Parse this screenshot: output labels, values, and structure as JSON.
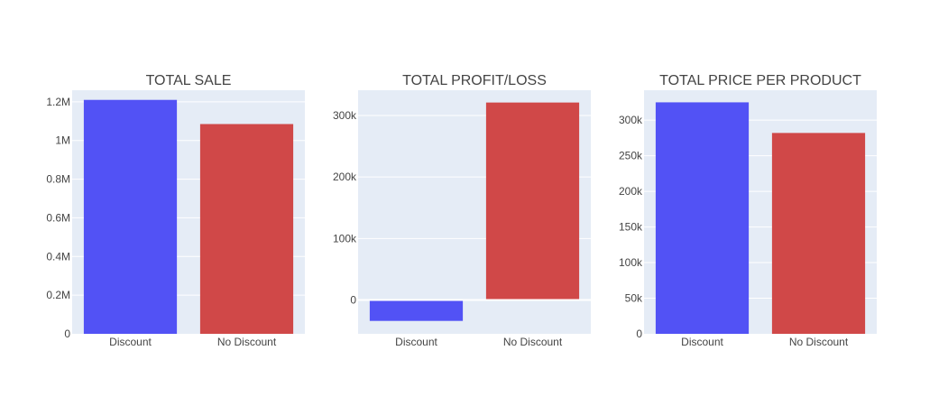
{
  "chart_data": [
    {
      "type": "bar",
      "title": "TOTAL SALE",
      "categories": [
        "Discount",
        "No Discount"
      ],
      "values": [
        1210000,
        1085000
      ],
      "colors": [
        "#5252f5",
        "#d04848"
      ],
      "ylim": [
        0,
        1260000
      ],
      "yticks": [
        0,
        200000,
        400000,
        600000,
        800000,
        1000000,
        1200000
      ],
      "yticklabels": [
        "0",
        "0.2M",
        "0.4M",
        "0.6M",
        "0.8M",
        "1M",
        "1.2M"
      ],
      "xlabel": "",
      "ylabel": "",
      "grid": true
    },
    {
      "type": "bar",
      "title": "TOTAL PROFIT/LOSS",
      "categories": [
        "Discount",
        "No Discount"
      ],
      "values": [
        -34000,
        321000
      ],
      "colors": [
        "#5252f5",
        "#d04848"
      ],
      "ylim": [
        -55000,
        341000
      ],
      "yticks": [
        0,
        100000,
        200000,
        300000
      ],
      "yticklabels": [
        "0",
        "100k",
        "200k",
        "300k"
      ],
      "xlabel": "",
      "ylabel": "",
      "grid": true
    },
    {
      "type": "bar",
      "title": "TOTAL PRICE PER PRODUCT",
      "categories": [
        "Discount",
        "No Discount"
      ],
      "values": [
        325000,
        282000
      ],
      "colors": [
        "#5252f5",
        "#d04848"
      ],
      "ylim": [
        0,
        342000
      ],
      "yticks": [
        0,
        50000,
        100000,
        150000,
        200000,
        250000,
        300000
      ],
      "yticklabels": [
        "0",
        "50k",
        "100k",
        "150k",
        "200k",
        "250k",
        "300k"
      ],
      "xlabel": "",
      "ylabel": "",
      "grid": true
    }
  ],
  "style": {
    "plot_bg": "#e5ecf6",
    "grid_color": "#ffffff",
    "text_color": "#444444"
  }
}
